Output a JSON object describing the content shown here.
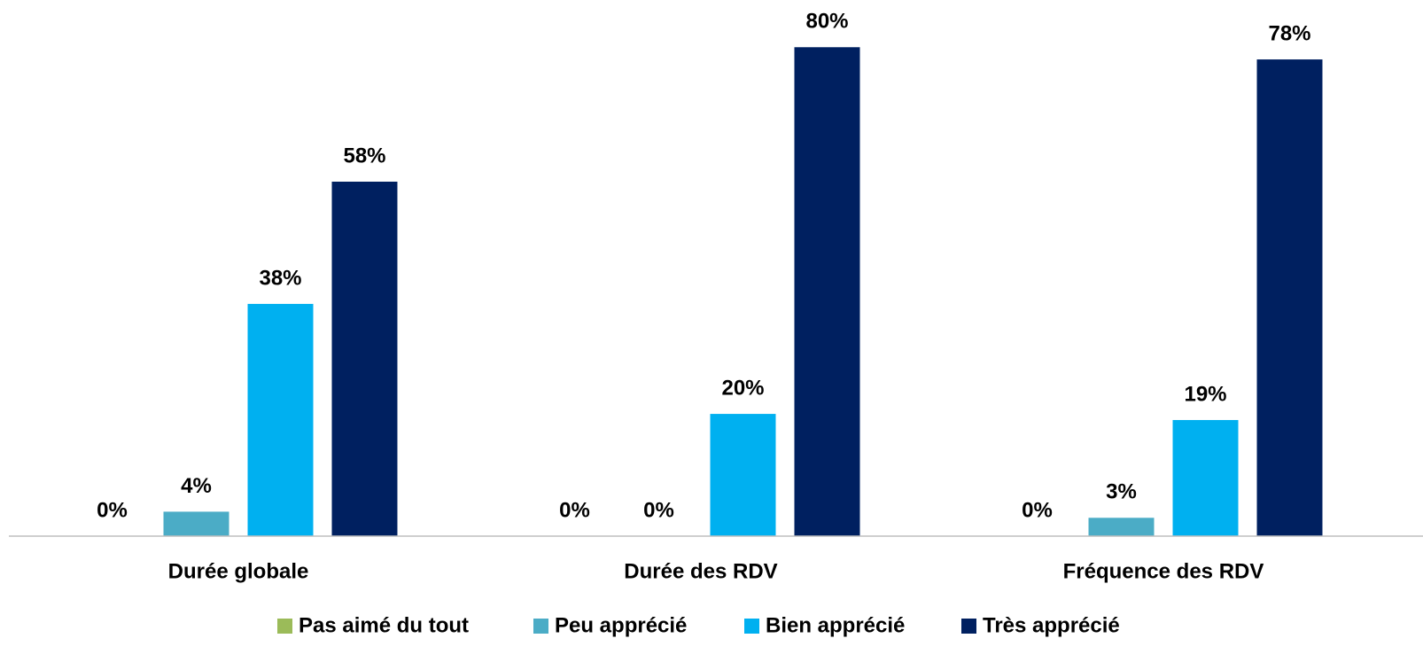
{
  "chart_data": {
    "type": "bar",
    "categories": [
      "Durée globale",
      "Durée des RDV",
      "Fréquence des RDV"
    ],
    "series": [
      {
        "name": "Pas aimé du tout",
        "color": "#9bbb59",
        "values": [
          0,
          0,
          0
        ],
        "value_labels": [
          "0%",
          "0%",
          "0%"
        ]
      },
      {
        "name": "Peu apprécié",
        "color": "#4bacc6",
        "values": [
          4,
          0,
          3
        ],
        "value_labels": [
          "4%",
          "0%",
          "3%"
        ]
      },
      {
        "name": "Bien apprécié",
        "color": "#00b0f0",
        "values": [
          38,
          20,
          19
        ],
        "value_labels": [
          "38%",
          "20%",
          "19%"
        ]
      },
      {
        "name": "Très apprécié",
        "color": "#002060",
        "values": [
          58,
          80,
          78
        ],
        "value_labels": [
          "58%",
          "80%",
          "78%"
        ]
      }
    ],
    "ylim": [
      0,
      87
    ],
    "legend": "bottom"
  }
}
